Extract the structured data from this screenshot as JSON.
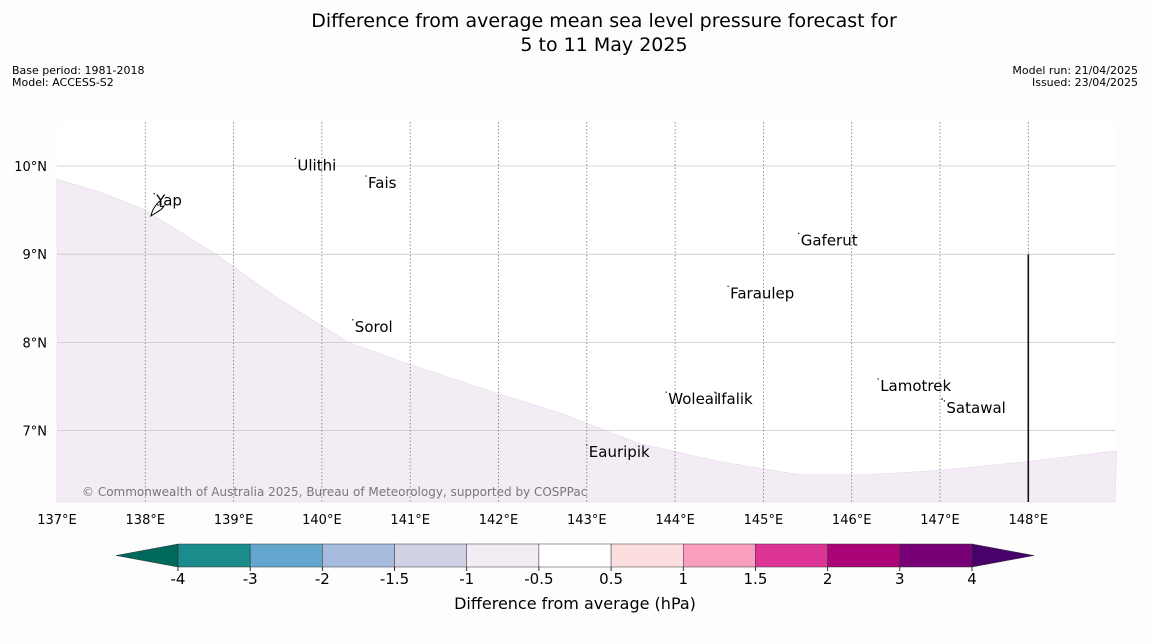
{
  "title_line1": "Difference from average mean sea level pressure forecast for",
  "title_line2": "5 to 11 May 2025",
  "meta_left": {
    "base_period": "Base period: 1981-2018",
    "model": "Model: ACCESS-S2"
  },
  "meta_right": {
    "model_run": "Model run: 21/04/2025",
    "issued": "Issued: 23/04/2025"
  },
  "copyright": "© Commonwealth of Australia 2025, Bureau of Meteorology, supported by COSPPac",
  "map": {
    "lon_range": [
      137,
      149
    ],
    "lat_range": [
      6.2,
      10.5
    ],
    "lon_ticks": [
      {
        "value": 137,
        "label": "137°E"
      },
      {
        "value": 138,
        "label": "138°E"
      },
      {
        "value": 139,
        "label": "139°E"
      },
      {
        "value": 140,
        "label": "140°E"
      },
      {
        "value": 141,
        "label": "141°E"
      },
      {
        "value": 142,
        "label": "142°E"
      },
      {
        "value": 143,
        "label": "143°E"
      },
      {
        "value": 144,
        "label": "144°E"
      },
      {
        "value": 145,
        "label": "145°E"
      },
      {
        "value": 146,
        "label": "146°E"
      },
      {
        "value": 147,
        "label": "147°E"
      },
      {
        "value": 148,
        "label": "148°E"
      }
    ],
    "lat_ticks": [
      {
        "value": 10,
        "label": "10°N"
      },
      {
        "value": 9,
        "label": "9°N"
      },
      {
        "value": 8,
        "label": "8°N"
      },
      {
        "value": 7,
        "label": "7°N"
      }
    ],
    "shaded_region": {
      "category": "-1 to -0.5",
      "color": "#f4ecf5",
      "boundary_lonlat": [
        [
          137,
          9.85
        ],
        [
          137.5,
          9.7
        ],
        [
          138,
          9.5
        ],
        [
          138.8,
          9.0
        ],
        [
          139.5,
          8.5
        ],
        [
          140.3,
          8.0
        ],
        [
          141.0,
          7.75
        ],
        [
          141.9,
          7.45
        ],
        [
          142.7,
          7.2
        ],
        [
          143.6,
          6.85
        ],
        [
          144.5,
          6.65
        ],
        [
          145.4,
          6.5
        ],
        [
          146.2,
          6.5
        ],
        [
          147.0,
          6.55
        ],
        [
          148.0,
          6.65
        ],
        [
          149.0,
          6.77
        ]
      ]
    },
    "islands": [
      {
        "name": "Yap",
        "lon": 138.1,
        "lat": 9.55
      },
      {
        "name": "Ulithi",
        "lon": 139.7,
        "lat": 9.95
      },
      {
        "name": "Fais",
        "lon": 140.5,
        "lat": 9.75
      },
      {
        "name": "Sorol",
        "lon": 140.35,
        "lat": 8.12
      },
      {
        "name": "Gaferut",
        "lon": 145.4,
        "lat": 9.1
      },
      {
        "name": "Faraulep",
        "lon": 144.6,
        "lat": 8.5
      },
      {
        "name": "Woleai",
        "lon": 143.9,
        "lat": 7.3
      },
      {
        "name": "Ifalik",
        "lon": 144.45,
        "lat": 7.3
      },
      {
        "name": "Lamotrek",
        "lon": 146.3,
        "lat": 7.45
      },
      {
        "name": "Satawal",
        "lon": 147.05,
        "lat": 7.2
      },
      {
        "name": "Eauripik",
        "lon": 143.0,
        "lat": 6.7
      }
    ],
    "boundary_line": {
      "lon": 148,
      "lat_from": 9.0,
      "lat_to": 6.2
    }
  },
  "colorbar": {
    "title": "Difference from average (hPa)",
    "boundaries": [
      "-4",
      "-3",
      "-2",
      "-1.5",
      "-1",
      "-0.5",
      "0.5",
      "1",
      "1.5",
      "2",
      "3",
      "4"
    ],
    "colors": [
      "#1a8c8c",
      "#63a7cf",
      "#a6bbde",
      "#d0d1e5",
      "#f4ecf5",
      "#ffffff",
      "#fddede",
      "#f99ebe",
      "#dd3596",
      "#ad0379",
      "#790178"
    ],
    "under_color": "#00695c",
    "over_color": "#4a006a"
  }
}
